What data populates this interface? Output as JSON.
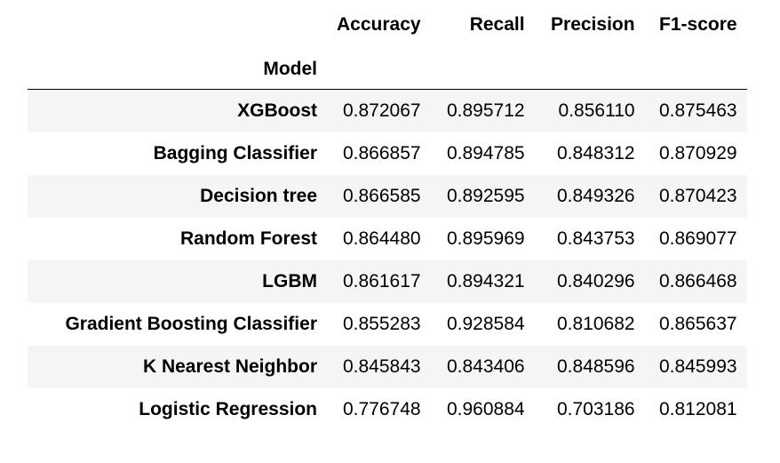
{
  "table": {
    "index_name": "Model",
    "columns": [
      "Accuracy",
      "Recall",
      "Precision",
      "F1-score"
    ],
    "rows": [
      {
        "model": "XGBoost",
        "values": [
          "0.872067",
          "0.895712",
          "0.856110",
          "0.875463"
        ]
      },
      {
        "model": "Bagging Classifier",
        "values": [
          "0.866857",
          "0.894785",
          "0.848312",
          "0.870929"
        ]
      },
      {
        "model": "Decision tree",
        "values": [
          "0.866585",
          "0.892595",
          "0.849326",
          "0.870423"
        ]
      },
      {
        "model": "Random Forest",
        "values": [
          "0.864480",
          "0.895969",
          "0.843753",
          "0.869077"
        ]
      },
      {
        "model": "LGBM",
        "values": [
          "0.861617",
          "0.894321",
          "0.840296",
          "0.866468"
        ]
      },
      {
        "model": "Gradient Boosting Classifier",
        "values": [
          "0.855283",
          "0.928584",
          "0.810682",
          "0.865637"
        ]
      },
      {
        "model": "K Nearest Neighbor",
        "values": [
          "0.845843",
          "0.843406",
          "0.848596",
          "0.845993"
        ]
      },
      {
        "model": "Logistic Regression",
        "values": [
          "0.776748",
          "0.960884",
          "0.703186",
          "0.812081"
        ]
      }
    ]
  },
  "colors": {
    "text": "#000000",
    "row_stripe": "#f5f5f5",
    "background": "#ffffff",
    "header_rule": "#000000"
  }
}
